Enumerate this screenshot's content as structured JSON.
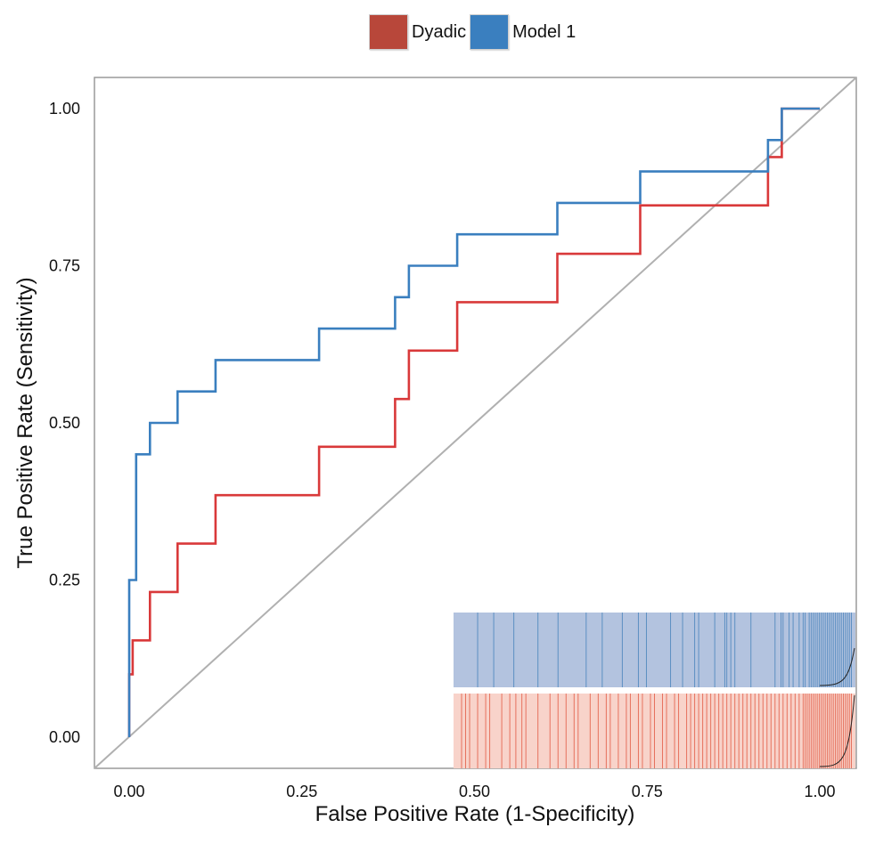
{
  "chart_data": {
    "type": "line",
    "xlabel": "False Positive Rate (1-Specificity)",
    "ylabel": "True Positive Rate (Sensitivity)",
    "xlim": [
      -0.1,
      1.1
    ],
    "ylim": [
      -0.05,
      1.05
    ],
    "x_ticks": [
      "0.00",
      "0.25",
      "0.50",
      "0.75",
      "1.00"
    ],
    "y_ticks": [
      "0.00",
      "0.25",
      "0.50",
      "0.75",
      "1.00"
    ],
    "legend": {
      "placement": "top-center",
      "entries": [
        "Dyadic",
        "Model 1"
      ]
    },
    "diagonal_reference": {
      "from": [
        -0.1,
        -0.1
      ],
      "to": [
        1.0,
        1.0
      ],
      "color": "#b0b0b0"
    },
    "series": [
      {
        "name": "Model 1",
        "color": "#3a7fbf",
        "points": [
          [
            0.0,
            0.0
          ],
          [
            0.0,
            0.25
          ],
          [
            0.01,
            0.25
          ],
          [
            0.01,
            0.45
          ],
          [
            0.03,
            0.45
          ],
          [
            0.03,
            0.5
          ],
          [
            0.07,
            0.5
          ],
          [
            0.07,
            0.55
          ],
          [
            0.125,
            0.55
          ],
          [
            0.125,
            0.6
          ],
          [
            0.275,
            0.6
          ],
          [
            0.275,
            0.65
          ],
          [
            0.385,
            0.65
          ],
          [
            0.385,
            0.7
          ],
          [
            0.405,
            0.7
          ],
          [
            0.405,
            0.75
          ],
          [
            0.475,
            0.75
          ],
          [
            0.475,
            0.8
          ],
          [
            0.62,
            0.8
          ],
          [
            0.62,
            0.85
          ],
          [
            0.74,
            0.85
          ],
          [
            0.74,
            0.9
          ],
          [
            0.925,
            0.9
          ],
          [
            0.925,
            0.95
          ],
          [
            0.945,
            0.95
          ],
          [
            0.945,
            1.0
          ],
          [
            1.0,
            1.0
          ]
        ]
      },
      {
        "name": "Dyadic",
        "color": "#d9393a",
        "points": [
          [
            0.0,
            0.0
          ],
          [
            0.0,
            0.1
          ],
          [
            0.005,
            0.1
          ],
          [
            0.005,
            0.154
          ],
          [
            0.03,
            0.154
          ],
          [
            0.03,
            0.231
          ],
          [
            0.07,
            0.231
          ],
          [
            0.07,
            0.308
          ],
          [
            0.125,
            0.308
          ],
          [
            0.125,
            0.385
          ],
          [
            0.275,
            0.385
          ],
          [
            0.275,
            0.462
          ],
          [
            0.385,
            0.462
          ],
          [
            0.385,
            0.538
          ],
          [
            0.405,
            0.538
          ],
          [
            0.405,
            0.615
          ],
          [
            0.475,
            0.615
          ],
          [
            0.475,
            0.692
          ],
          [
            0.62,
            0.692
          ],
          [
            0.62,
            0.769
          ],
          [
            0.74,
            0.769
          ],
          [
            0.74,
            0.846
          ],
          [
            0.925,
            0.846
          ],
          [
            0.925,
            0.923
          ],
          [
            0.945,
            0.923
          ],
          [
            0.945,
            1.0
          ],
          [
            1.0,
            1.0
          ]
        ]
      }
    ],
    "rug_inset": {
      "placement": "bottom-right",
      "bands": [
        {
          "name": "Model 1",
          "fill": "#b3c3df",
          "line": "#4d86bd",
          "values": [
            0.06,
            0.1,
            0.15,
            0.21,
            0.26,
            0.33,
            0.37,
            0.42,
            0.46,
            0.48,
            0.54,
            0.57,
            0.6,
            0.61,
            0.65,
            0.675,
            0.68,
            0.69,
            0.7,
            0.74,
            0.8,
            0.815,
            0.82,
            0.835,
            0.845,
            0.86,
            0.87,
            0.875,
            0.885,
            0.89,
            0.895,
            0.9,
            0.905,
            0.91,
            0.915,
            0.92,
            0.925,
            0.93,
            0.935,
            0.94,
            0.945,
            0.95,
            0.955,
            0.96,
            0.965,
            0.97,
            0.975,
            0.98,
            0.985,
            0.99
          ]
        },
        {
          "name": "Dyadic",
          "fill": "#f8d3ca",
          "line": "#e4604b",
          "values": [
            0.02,
            0.03,
            0.04,
            0.06,
            0.08,
            0.09,
            0.12,
            0.14,
            0.155,
            0.17,
            0.18,
            0.21,
            0.24,
            0.26,
            0.28,
            0.3,
            0.31,
            0.34,
            0.36,
            0.38,
            0.39,
            0.41,
            0.43,
            0.44,
            0.46,
            0.47,
            0.49,
            0.5,
            0.52,
            0.53,
            0.55,
            0.56,
            0.58,
            0.59,
            0.6,
            0.61,
            0.62,
            0.63,
            0.64,
            0.65,
            0.66,
            0.67,
            0.68,
            0.69,
            0.7,
            0.71,
            0.72,
            0.73,
            0.74,
            0.75,
            0.76,
            0.77,
            0.78,
            0.79,
            0.8,
            0.81,
            0.82,
            0.83,
            0.84,
            0.85,
            0.86,
            0.87,
            0.875,
            0.88,
            0.885,
            0.89,
            0.895,
            0.9,
            0.905,
            0.91,
            0.915,
            0.92,
            0.925,
            0.93,
            0.935,
            0.94,
            0.945,
            0.95,
            0.955,
            0.96,
            0.965,
            0.97,
            0.975,
            0.98,
            0.985,
            0.99
          ]
        }
      ]
    }
  }
}
